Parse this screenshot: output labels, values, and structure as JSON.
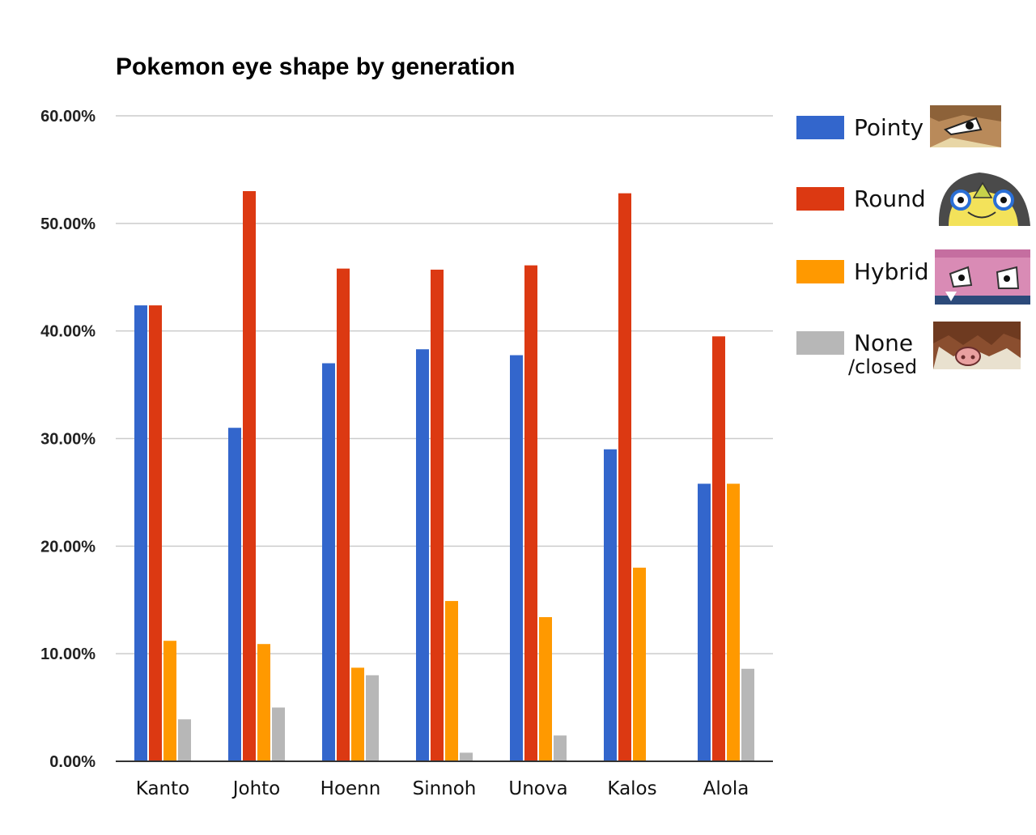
{
  "chart_data": {
    "type": "bar",
    "title": "Pokemon eye shape by generation",
    "xlabel": "",
    "ylabel": "",
    "ylim": [
      0,
      0.6
    ],
    "y_ticks": [
      "0.00%",
      "10.00%",
      "20.00%",
      "30.00%",
      "40.00%",
      "50.00%",
      "60.00%"
    ],
    "grid": true,
    "legend_position": "right",
    "categories": [
      "Kanto",
      "Johto",
      "Hoenn",
      "Sinnoh",
      "Unova",
      "Kalos",
      "Alola"
    ],
    "series": [
      {
        "name": "Pointy",
        "color": "#3366cc",
        "values": [
          0.4238,
          0.31,
          0.37,
          0.383,
          0.3775,
          0.29,
          0.258
        ]
      },
      {
        "name": "Round",
        "color": "#dc3912",
        "values": [
          0.4238,
          0.53,
          0.458,
          0.457,
          0.461,
          0.528,
          0.395
        ]
      },
      {
        "name": "Hybrid",
        "color": "#ff9900",
        "values": [
          0.112,
          0.109,
          0.087,
          0.149,
          0.134,
          0.18,
          0.258
        ]
      },
      {
        "name": "None",
        "sublabel": "/closed",
        "color": "#b7b7b7",
        "values": [
          0.039,
          0.05,
          0.08,
          0.008,
          0.024,
          0.0,
          0.086
        ]
      }
    ],
    "legend_images": [
      "pointy-eye-pokemon-image",
      "round-eye-pokemon-image",
      "hybrid-eye-pokemon-image",
      "closed-eye-pokemon-image"
    ]
  }
}
